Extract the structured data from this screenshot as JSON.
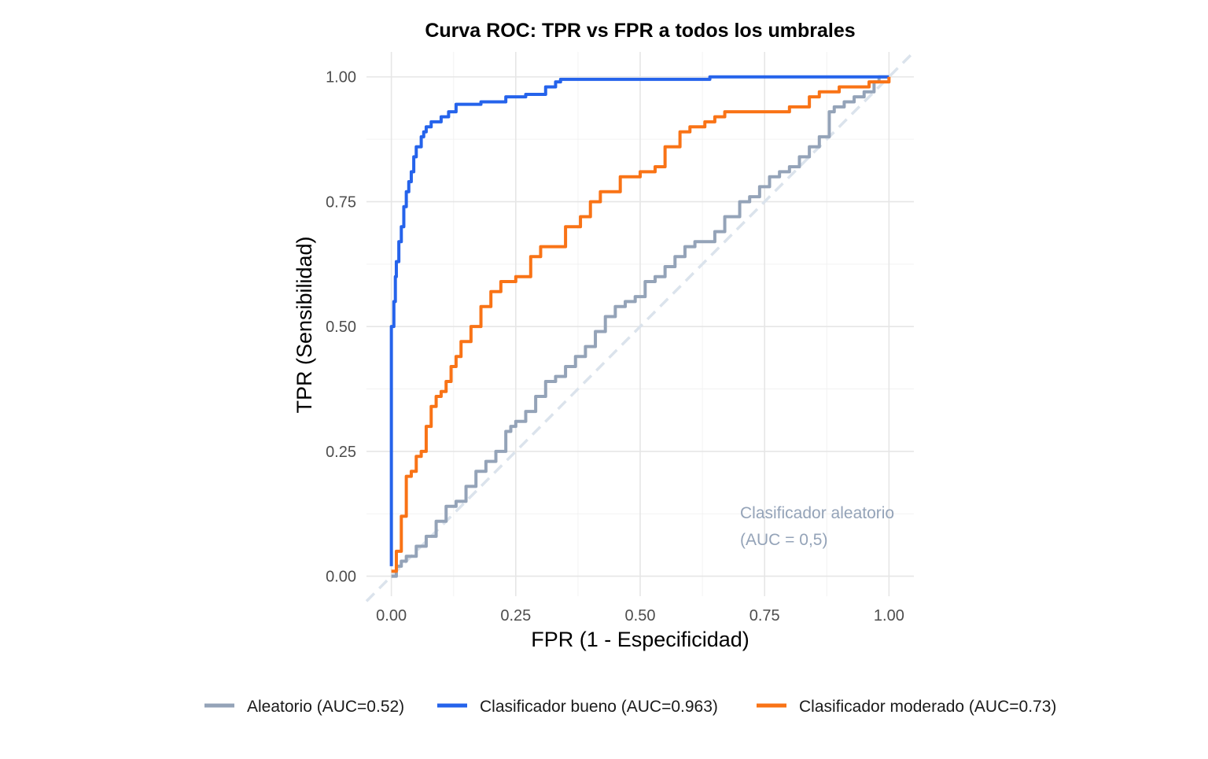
{
  "chart_data": {
    "type": "line",
    "title": "Curva ROC: TPR vs FPR a todos los umbrales",
    "xlabel": "FPR (1 - Especificidad)",
    "ylabel": "TPR (Sensibilidad)",
    "xlim": [
      -0.05,
      1.05
    ],
    "ylim": [
      -0.04,
      1.05
    ],
    "x_ticks": [
      "0.00",
      "0.25",
      "0.50",
      "0.75",
      "1.00"
    ],
    "y_ticks": [
      "0.00",
      "0.25",
      "0.50",
      "0.75",
      "1.00"
    ],
    "grid": true,
    "legend_position": "bottom",
    "annotation": [
      "Clasificador aleatorio",
      "(AUC = 0,5)"
    ],
    "reference_line": {
      "x": [
        -0.05,
        1.05
      ],
      "y": [
        -0.05,
        1.05
      ],
      "color": "#dbe3ec",
      "style": "dashed"
    },
    "series": [
      {
        "name": "Aleatorio (AUC=0.52)",
        "color": "#94a3b8",
        "x": [
          0.0,
          0.01,
          0.02,
          0.03,
          0.05,
          0.07,
          0.09,
          0.11,
          0.13,
          0.15,
          0.17,
          0.19,
          0.21,
          0.23,
          0.24,
          0.25,
          0.27,
          0.29,
          0.31,
          0.33,
          0.35,
          0.37,
          0.39,
          0.41,
          0.43,
          0.45,
          0.47,
          0.49,
          0.51,
          0.53,
          0.55,
          0.57,
          0.59,
          0.61,
          0.63,
          0.65,
          0.67,
          0.69,
          0.7,
          0.72,
          0.74,
          0.76,
          0.78,
          0.8,
          0.82,
          0.84,
          0.86,
          0.88,
          0.89,
          0.91,
          0.93,
          0.95,
          0.97,
          0.98,
          1.0
        ],
        "y": [
          0.0,
          0.02,
          0.03,
          0.04,
          0.06,
          0.08,
          0.11,
          0.14,
          0.15,
          0.18,
          0.21,
          0.23,
          0.25,
          0.29,
          0.3,
          0.31,
          0.33,
          0.36,
          0.39,
          0.4,
          0.42,
          0.44,
          0.46,
          0.49,
          0.52,
          0.54,
          0.55,
          0.56,
          0.59,
          0.6,
          0.62,
          0.64,
          0.66,
          0.67,
          0.67,
          0.69,
          0.72,
          0.72,
          0.75,
          0.76,
          0.78,
          0.8,
          0.81,
          0.82,
          0.84,
          0.86,
          0.88,
          0.93,
          0.94,
          0.95,
          0.96,
          0.97,
          0.99,
          1.0,
          1.0
        ]
      },
      {
        "name": "Clasificador bueno (AUC=0.963)",
        "color": "#2563eb",
        "x": [
          0.0,
          0.0,
          0.003,
          0.005,
          0.008,
          0.01,
          0.015,
          0.02,
          0.025,
          0.03,
          0.035,
          0.04,
          0.045,
          0.05,
          0.06,
          0.065,
          0.07,
          0.08,
          0.09,
          0.1,
          0.115,
          0.13,
          0.14,
          0.18,
          0.23,
          0.27,
          0.31,
          0.33,
          0.34,
          0.4,
          0.64,
          0.7,
          0.8,
          0.9,
          0.95,
          1.0
        ],
        "y": [
          0.02,
          0.5,
          0.5,
          0.55,
          0.6,
          0.63,
          0.67,
          0.7,
          0.74,
          0.77,
          0.79,
          0.81,
          0.84,
          0.86,
          0.88,
          0.89,
          0.9,
          0.91,
          0.91,
          0.92,
          0.93,
          0.945,
          0.945,
          0.95,
          0.96,
          0.965,
          0.98,
          0.99,
          0.995,
          0.995,
          1.0,
          1.0,
          1.0,
          1.0,
          1.0,
          1.0
        ]
      },
      {
        "name": "Clasificador moderado (AUC=0.73)",
        "color": "#f97316",
        "x": [
          0.0,
          0.01,
          0.02,
          0.03,
          0.04,
          0.05,
          0.06,
          0.07,
          0.08,
          0.09,
          0.1,
          0.11,
          0.12,
          0.13,
          0.14,
          0.16,
          0.18,
          0.2,
          0.22,
          0.24,
          0.25,
          0.28,
          0.3,
          0.32,
          0.35,
          0.38,
          0.4,
          0.42,
          0.46,
          0.48,
          0.5,
          0.53,
          0.55,
          0.58,
          0.6,
          0.63,
          0.65,
          0.67,
          0.7,
          0.72,
          0.76,
          0.8,
          0.84,
          0.86,
          0.88,
          0.9,
          0.93,
          0.96,
          1.0
        ],
        "y": [
          0.01,
          0.05,
          0.12,
          0.2,
          0.21,
          0.24,
          0.25,
          0.3,
          0.34,
          0.36,
          0.37,
          0.39,
          0.42,
          0.44,
          0.47,
          0.5,
          0.54,
          0.57,
          0.59,
          0.59,
          0.6,
          0.64,
          0.66,
          0.66,
          0.7,
          0.72,
          0.75,
          0.77,
          0.8,
          0.8,
          0.81,
          0.82,
          0.86,
          0.89,
          0.9,
          0.91,
          0.92,
          0.93,
          0.93,
          0.93,
          0.93,
          0.94,
          0.96,
          0.97,
          0.97,
          0.98,
          0.98,
          0.99,
          1.0
        ]
      }
    ]
  }
}
